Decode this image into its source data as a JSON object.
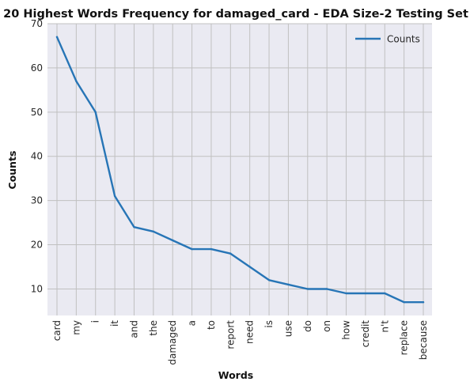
{
  "chart_data": {
    "type": "line",
    "title": "20 Highest Words Frequency for damaged_card - EDA Size-2 Testing Set",
    "xlabel": "Words",
    "ylabel": "Counts",
    "ylim": [
      4,
      70
    ],
    "yticks": [
      10,
      20,
      30,
      40,
      50,
      60,
      70
    ],
    "grid": true,
    "legend_position": "top-right",
    "categories": [
      "card",
      "my",
      "i",
      "it",
      "and",
      "the",
      "damaged",
      "a",
      "to",
      "report",
      "need",
      "is",
      "use",
      "do",
      "on",
      "how",
      "credit",
      "n't",
      "replace",
      "because"
    ],
    "series": [
      {
        "name": "Counts",
        "color": "#2775b6",
        "values": [
          67,
          57,
          50,
          31,
          24,
          23,
          21,
          19,
          19,
          18,
          15,
          12,
          11,
          10,
          10,
          9,
          9,
          9,
          7,
          7
        ]
      }
    ],
    "background_color": "#eaeaf2",
    "grid_color": "#c0c0c0"
  }
}
